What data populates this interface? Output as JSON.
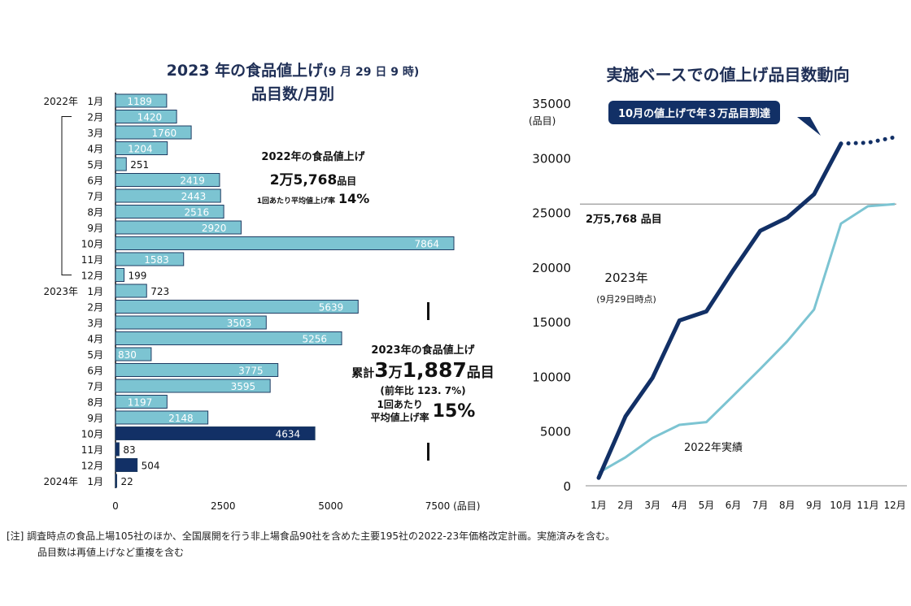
{
  "left": {
    "title_line1": "2023 年の食品値上げ",
    "title_line1_suffix": "(9 月 29 日 9 時)",
    "title_line2": "品目数/月別",
    "box2022": {
      "title": "2022年の食品値上げ",
      "count_main": "2万5,768",
      "count_unit": "品目",
      "rate_label": "1回あたり平均値上げ率",
      "rate_value": "14%"
    },
    "box2023": {
      "title": "2023年の食品値上げ",
      "prefix": "累計",
      "count_a": "3",
      "count_man": "万",
      "count_b": "1,887",
      "count_unit": "品目",
      "yoy": "(前年比 123. 7%)",
      "rate_label_1": "1回あたり",
      "rate_label_2": "平均値上げ率",
      "rate_value": "15%"
    }
  },
  "right": {
    "title": "実施ベースでの値上げ品目数動向",
    "callout": "10月の値上げで年３万品目到達",
    "ref_label_main": "2万5,768",
    "ref_label_unit": "品目",
    "label_2023": "2023年",
    "label_2023_sub": "(9月29日時点)",
    "label_2022": "2022年実績"
  },
  "note": {
    "line1": "[注]  調査時点の食品上場105社のほか、全国展開を行う非上場食品90社を含めた主要195社の2022-23年価格改定計画。実施済みを含む。",
    "line2": "品目数は再値上げなど重複を含む"
  },
  "chart_data": [
    {
      "type": "bar",
      "orientation": "horizontal",
      "title": "2023 年の食品値上げ(9 月 29 日 9 時) 品目数/月別",
      "xlabel": "(品目)",
      "xlim": [
        0,
        7500
      ],
      "xticks": [
        0,
        2500,
        5000,
        7500
      ],
      "xtick_labels": [
        "0",
        "2500",
        "5000",
        "7500 (品目)"
      ],
      "grid": false,
      "categories": [
        {
          "year": "2022年",
          "month": "1月",
          "value": 1189,
          "group": "past"
        },
        {
          "year": "",
          "month": "2月",
          "value": 1420,
          "group": "past"
        },
        {
          "year": "",
          "month": "3月",
          "value": 1760,
          "group": "past"
        },
        {
          "year": "",
          "month": "4月",
          "value": 1204,
          "group": "past"
        },
        {
          "year": "",
          "month": "5月",
          "value": 251,
          "group": "past"
        },
        {
          "year": "",
          "month": "6月",
          "value": 2419,
          "group": "past"
        },
        {
          "year": "",
          "month": "7月",
          "value": 2443,
          "group": "past"
        },
        {
          "year": "",
          "month": "8月",
          "value": 2516,
          "group": "past"
        },
        {
          "year": "",
          "month": "9月",
          "value": 2920,
          "group": "past"
        },
        {
          "year": "",
          "month": "10月",
          "value": 7864,
          "group": "past"
        },
        {
          "year": "",
          "month": "11月",
          "value": 1583,
          "group": "past"
        },
        {
          "year": "",
          "month": "12月",
          "value": 199,
          "group": "past"
        },
        {
          "year": "2023年",
          "month": "1月",
          "value": 723,
          "group": "past"
        },
        {
          "year": "",
          "month": "2月",
          "value": 5639,
          "group": "past"
        },
        {
          "year": "",
          "month": "3月",
          "value": 3503,
          "group": "past"
        },
        {
          "year": "",
          "month": "4月",
          "value": 5256,
          "group": "past"
        },
        {
          "year": "",
          "month": "5月",
          "value": 830,
          "group": "past"
        },
        {
          "year": "",
          "month": "6月",
          "value": 3775,
          "group": "past"
        },
        {
          "year": "",
          "month": "7月",
          "value": 3595,
          "group": "past"
        },
        {
          "year": "",
          "month": "8月",
          "value": 1197,
          "group": "past"
        },
        {
          "year": "",
          "month": "9月",
          "value": 2148,
          "group": "past"
        },
        {
          "year": "",
          "month": "10月",
          "value": 4634,
          "group": "planned"
        },
        {
          "year": "",
          "month": "11月",
          "value": 83,
          "group": "planned"
        },
        {
          "year": "",
          "month": "12月",
          "value": 504,
          "group": "planned"
        },
        {
          "year": "2024年",
          "month": "1月",
          "value": 22,
          "group": "planned"
        }
      ],
      "colors": {
        "past": "#7cc4d2",
        "planned": "#123066",
        "edge": "#1f3c63"
      }
    },
    {
      "type": "line",
      "title": "実施ベースでの値上げ品目数動向",
      "ylabel": "(品目)",
      "ylim": [
        0,
        35000
      ],
      "yticks": [
        0,
        5000,
        10000,
        15000,
        20000,
        25000,
        30000,
        35000
      ],
      "x": [
        "1月",
        "2月",
        "3月",
        "4月",
        "5月",
        "6月",
        "7月",
        "8月",
        "9月",
        "10月",
        "11月",
        "12月"
      ],
      "reference_line": 25768,
      "series": [
        {
          "name": "2023年",
          "color": "#123066",
          "values": [
            723,
            6362,
            9865,
            15121,
            15951,
            19726,
            23321,
            24518,
            26666,
            31300,
            31383,
            31887
          ],
          "solid_until_index": 9
        },
        {
          "name": "2022年実績",
          "color": "#7cc4d2",
          "values": [
            1189,
            2609,
            4369,
            5573,
            5824,
            8243,
            10686,
            13202,
            16122,
            23986,
            25569,
            25768
          ]
        }
      ]
    }
  ]
}
